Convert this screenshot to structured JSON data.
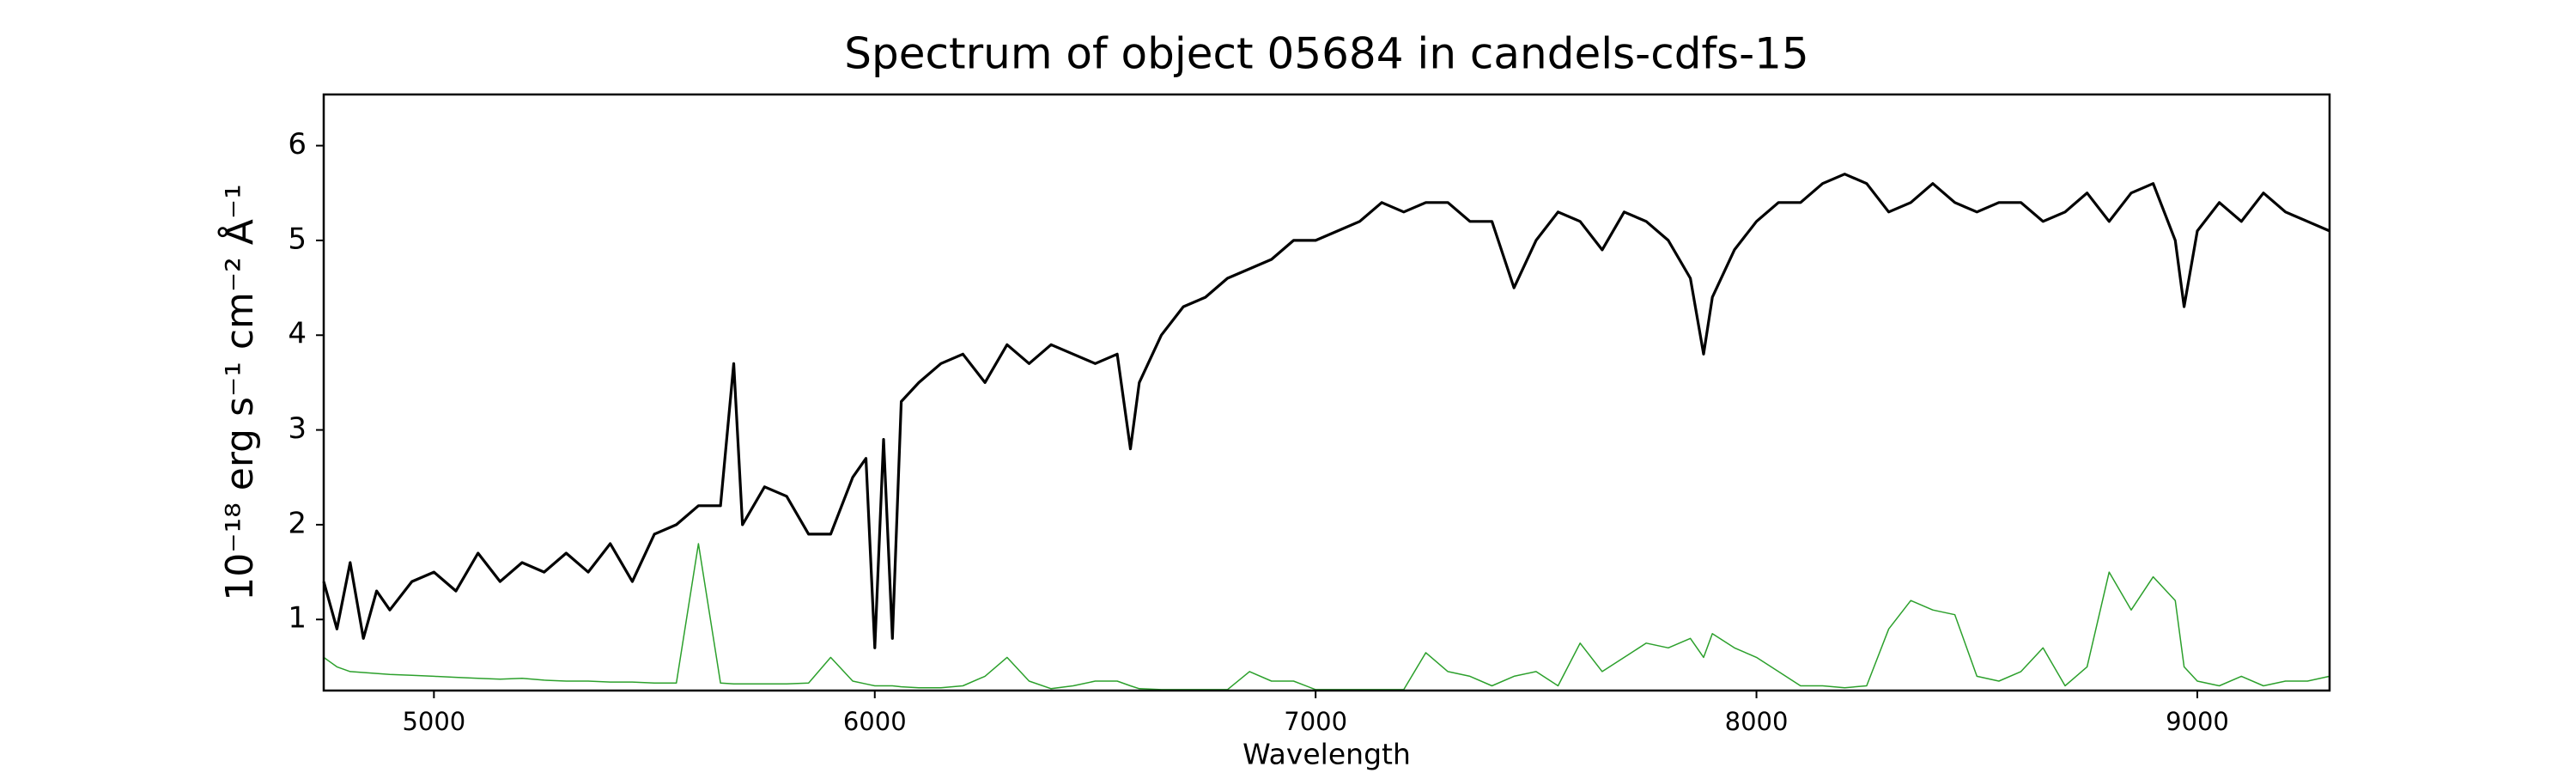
{
  "chart_data": {
    "type": "line",
    "title": "Spectrum of object 05684 in candels-cdfs-15",
    "xlabel": "Wavelength",
    "ylabel": "10⁻¹⁸ erg s⁻¹ cm⁻² Å⁻¹",
    "x": [
      4750,
      4780,
      4810,
      4840,
      4870,
      4900,
      4950,
      5000,
      5050,
      5100,
      5150,
      5200,
      5250,
      5300,
      5350,
      5400,
      5450,
      5500,
      5550,
      5600,
      5650,
      5680,
      5700,
      5750,
      5800,
      5850,
      5900,
      5950,
      5980,
      6000,
      6020,
      6040,
      6060,
      6100,
      6150,
      6200,
      6250,
      6300,
      6350,
      6400,
      6450,
      6500,
      6550,
      6580,
      6600,
      6650,
      6700,
      6750,
      6800,
      6850,
      6900,
      6950,
      7000,
      7050,
      7100,
      7150,
      7200,
      7250,
      7300,
      7350,
      7400,
      7450,
      7500,
      7550,
      7600,
      7650,
      7700,
      7750,
      7800,
      7850,
      7880,
      7900,
      7950,
      8000,
      8050,
      8100,
      8150,
      8200,
      8250,
      8300,
      8350,
      8400,
      8450,
      8500,
      8550,
      8600,
      8650,
      8700,
      8750,
      8800,
      8850,
      8900,
      8950,
      8970,
      9000,
      9050,
      9100,
      9150,
      9200,
      9250,
      9300
    ],
    "series": [
      {
        "color": "#000000",
        "width": 3.2,
        "values": [
          1.4,
          0.9,
          1.6,
          0.8,
          1.3,
          1.1,
          1.4,
          1.5,
          1.3,
          1.7,
          1.4,
          1.6,
          1.5,
          1.7,
          1.5,
          1.8,
          1.4,
          1.9,
          2.0,
          2.2,
          2.2,
          3.7,
          2.0,
          2.4,
          2.3,
          1.9,
          1.9,
          2.5,
          2.7,
          0.7,
          2.9,
          0.8,
          3.3,
          3.5,
          3.7,
          3.8,
          3.5,
          3.9,
          3.7,
          3.9,
          3.8,
          3.7,
          3.8,
          2.8,
          3.5,
          4.0,
          4.3,
          4.4,
          4.6,
          4.7,
          4.8,
          5.0,
          5.0,
          5.1,
          5.2,
          5.4,
          5.3,
          5.4,
          5.4,
          5.2,
          5.2,
          4.5,
          5.0,
          5.3,
          5.2,
          4.9,
          5.3,
          5.2,
          5.0,
          4.6,
          3.8,
          4.4,
          4.9,
          5.2,
          5.4,
          5.4,
          5.6,
          5.7,
          5.6,
          5.3,
          5.4,
          5.6,
          5.4,
          5.3,
          5.4,
          5.4,
          5.2,
          5.3,
          5.5,
          5.2,
          5.5,
          5.6,
          5.0,
          4.3,
          5.1,
          5.4,
          5.2,
          5.5,
          5.3,
          5.2,
          5.1
        ]
      },
      {
        "color": "#2ca02c",
        "width": 1.5,
        "values": [
          0.6,
          0.5,
          0.45,
          0.44,
          0.43,
          0.42,
          0.41,
          0.4,
          0.39,
          0.38,
          0.37,
          0.38,
          0.36,
          0.35,
          0.35,
          0.34,
          0.34,
          0.33,
          0.33,
          1.8,
          0.33,
          0.32,
          0.32,
          0.32,
          0.32,
          0.33,
          0.6,
          0.35,
          0.32,
          0.3,
          0.3,
          0.3,
          0.29,
          0.28,
          0.28,
          0.3,
          0.4,
          0.6,
          0.35,
          0.27,
          0.3,
          0.35,
          0.35,
          0.3,
          0.27,
          0.26,
          0.26,
          0.26,
          0.26,
          0.45,
          0.35,
          0.35,
          0.26,
          0.26,
          0.26,
          0.26,
          0.26,
          0.65,
          0.45,
          0.4,
          0.3,
          0.4,
          0.45,
          0.3,
          0.75,
          0.45,
          0.6,
          0.75,
          0.7,
          0.8,
          0.6,
          0.85,
          0.7,
          0.6,
          0.45,
          0.3,
          0.3,
          0.28,
          0.3,
          0.9,
          1.2,
          1.1,
          1.05,
          0.4,
          0.35,
          0.45,
          0.7,
          0.3,
          0.5,
          1.5,
          1.1,
          1.45,
          1.2,
          0.5,
          0.35,
          0.3,
          0.4,
          0.3,
          0.35,
          0.35,
          0.4
        ]
      }
    ],
    "xlim": [
      4750,
      9300
    ],
    "ylim": [
      0.25,
      6.54
    ],
    "xticks": [
      5000,
      6000,
      7000,
      8000,
      9000
    ],
    "yticks": [
      1,
      2,
      3,
      4,
      5,
      6
    ]
  }
}
